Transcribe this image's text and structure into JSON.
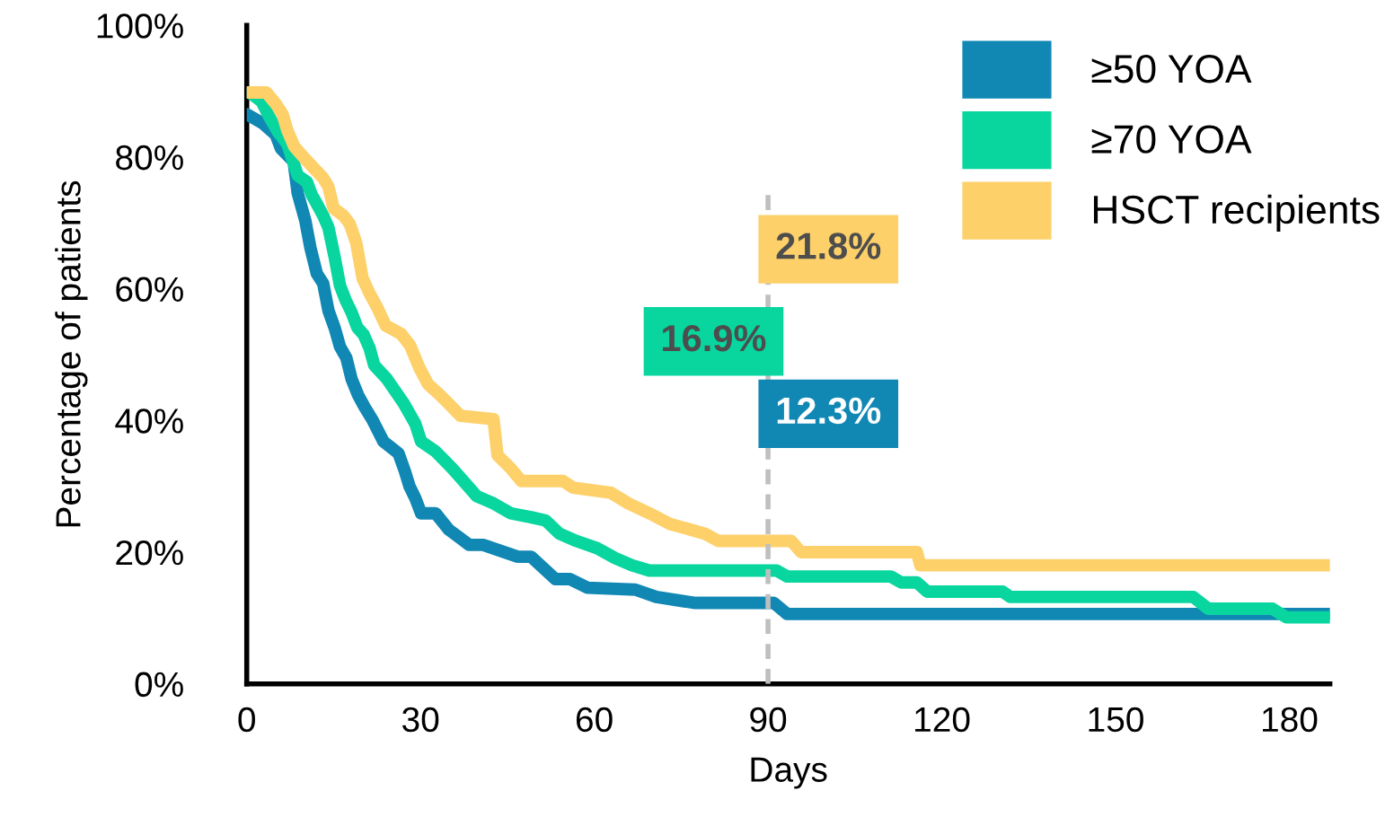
{
  "chart_data": {
    "type": "line",
    "xlabel": "Days",
    "ylabel": "Percentage of patients",
    "xlim": [
      0,
      187
    ],
    "xticks": [
      0,
      30,
      60,
      90,
      120,
      150,
      180
    ],
    "ylim": [
      0,
      100
    ],
    "yticks": [
      {
        "value": 0,
        "label": "0%"
      },
      {
        "value": 20,
        "label": "20%"
      },
      {
        "value": 40,
        "label": "40%"
      },
      {
        "value": 60,
        "label": "60%"
      },
      {
        "value": 80,
        "label": "80%"
      },
      {
        "value": 100,
        "label": "100%"
      }
    ],
    "grid": false,
    "legend": "top right",
    "line_style": "solid",
    "marker": "none",
    "series": [
      {
        "name": "≥50 YOA",
        "color": "#1188b4",
        "x": [
          0,
          2.8,
          5.0,
          5.9,
          8.1,
          8.8,
          10.1,
          11.0,
          12.1,
          13.2,
          14.1,
          15.2,
          16.1,
          17.2,
          18.1,
          19.2,
          20.3,
          21.7,
          23.6,
          26.2,
          27.3,
          28.1,
          29.1,
          30.1,
          32.6,
          34.9,
          38.4,
          40.8,
          46.8,
          49.1,
          53.3,
          55.8,
          58.8,
          67.1,
          70.7,
          77.2,
          91.0,
          93.3,
          187
        ],
        "values": [
          86.5,
          85.1,
          83.4,
          81.3,
          79.3,
          74.5,
          70.4,
          66.2,
          62.3,
          60.8,
          56.7,
          54.0,
          51.2,
          49.5,
          46.3,
          43.9,
          42.1,
          40.1,
          36.8,
          35.0,
          32.3,
          30.0,
          28.2,
          25.9,
          25.9,
          23.4,
          21.1,
          21.1,
          19.3,
          19.3,
          15.9,
          15.9,
          14.6,
          14.3,
          13.2,
          12.3,
          12.3,
          10.6,
          10.6
        ]
      },
      {
        "name": "≥70 YOA",
        "color": "#08d69e",
        "x": [
          0.5,
          2.6,
          3.9,
          5.4,
          7.0,
          8.8,
          10.4,
          11.2,
          12.1,
          13.2,
          14.1,
          15.2,
          16.1,
          17.1,
          18.1,
          19.1,
          20.2,
          21.2,
          22.0,
          24.2,
          27.1,
          29.1,
          30.1,
          32.6,
          35.5,
          39.7,
          42.6,
          45.6,
          49.1,
          51.6,
          54.0,
          56.9,
          60.5,
          63.6,
          66.5,
          69.5,
          91.5,
          93.3,
          111.2,
          113.0,
          115.7,
          117.5,
          130.5,
          131.8,
          163.4,
          166.0,
          177.1,
          179.5,
          187
        ],
        "values": [
          89.8,
          88.4,
          86.1,
          83.8,
          82.0,
          77.2,
          76.2,
          74.3,
          72.9,
          71.1,
          69.3,
          64.7,
          60.5,
          58.2,
          56.4,
          54.1,
          53.0,
          51.0,
          48.4,
          46.3,
          42.6,
          39.5,
          36.8,
          35.3,
          32.7,
          28.5,
          27.4,
          25.9,
          25.3,
          24.8,
          22.8,
          21.7,
          20.6,
          19.1,
          18.0,
          17.2,
          17.2,
          16.3,
          16.3,
          15.4,
          15.4,
          14.0,
          14.0,
          13.2,
          13.2,
          11.4,
          11.4,
          10.1,
          10.1
        ]
      },
      {
        "name": "HSCT recipients",
        "color": "#fdd06a",
        "x": [
          0,
          3.4,
          5.0,
          6.2,
          7.0,
          8.2,
          10.1,
          11.6,
          13.2,
          14.1,
          15.0,
          16.7,
          17.8,
          18.9,
          20.0,
          21.2,
          22.5,
          24.0,
          26.7,
          28.2,
          29.8,
          31.3,
          33.3,
          34.9,
          36.9,
          42.6,
          43.3,
          45.6,
          47.4,
          54.6,
          56.3,
          62.9,
          65.9,
          69.5,
          73.0,
          79.1,
          81.4,
          94.0,
          95.7,
          115.7,
          116.3,
          187
        ],
        "values": [
          89.8,
          89.8,
          88.1,
          86.5,
          84.1,
          81.6,
          79.7,
          78.3,
          76.8,
          75.5,
          72.2,
          71.1,
          69.8,
          67.0,
          61.6,
          59.3,
          57.2,
          54.4,
          53.1,
          51.4,
          48.0,
          45.5,
          43.9,
          42.5,
          40.7,
          40.2,
          34.7,
          32.7,
          30.8,
          30.8,
          29.8,
          29.0,
          27.4,
          25.9,
          24.3,
          22.8,
          21.7,
          21.7,
          20.0,
          20.0,
          18.0,
          18.0
        ]
      }
    ],
    "ref_lines": [
      {
        "axis": "x",
        "value": 90,
        "color": "#bfbfbf",
        "line_style": "dashed"
      }
    ],
    "annotations": [
      "12.3%",
      "16.9%",
      "21.8%"
    ]
  }
}
